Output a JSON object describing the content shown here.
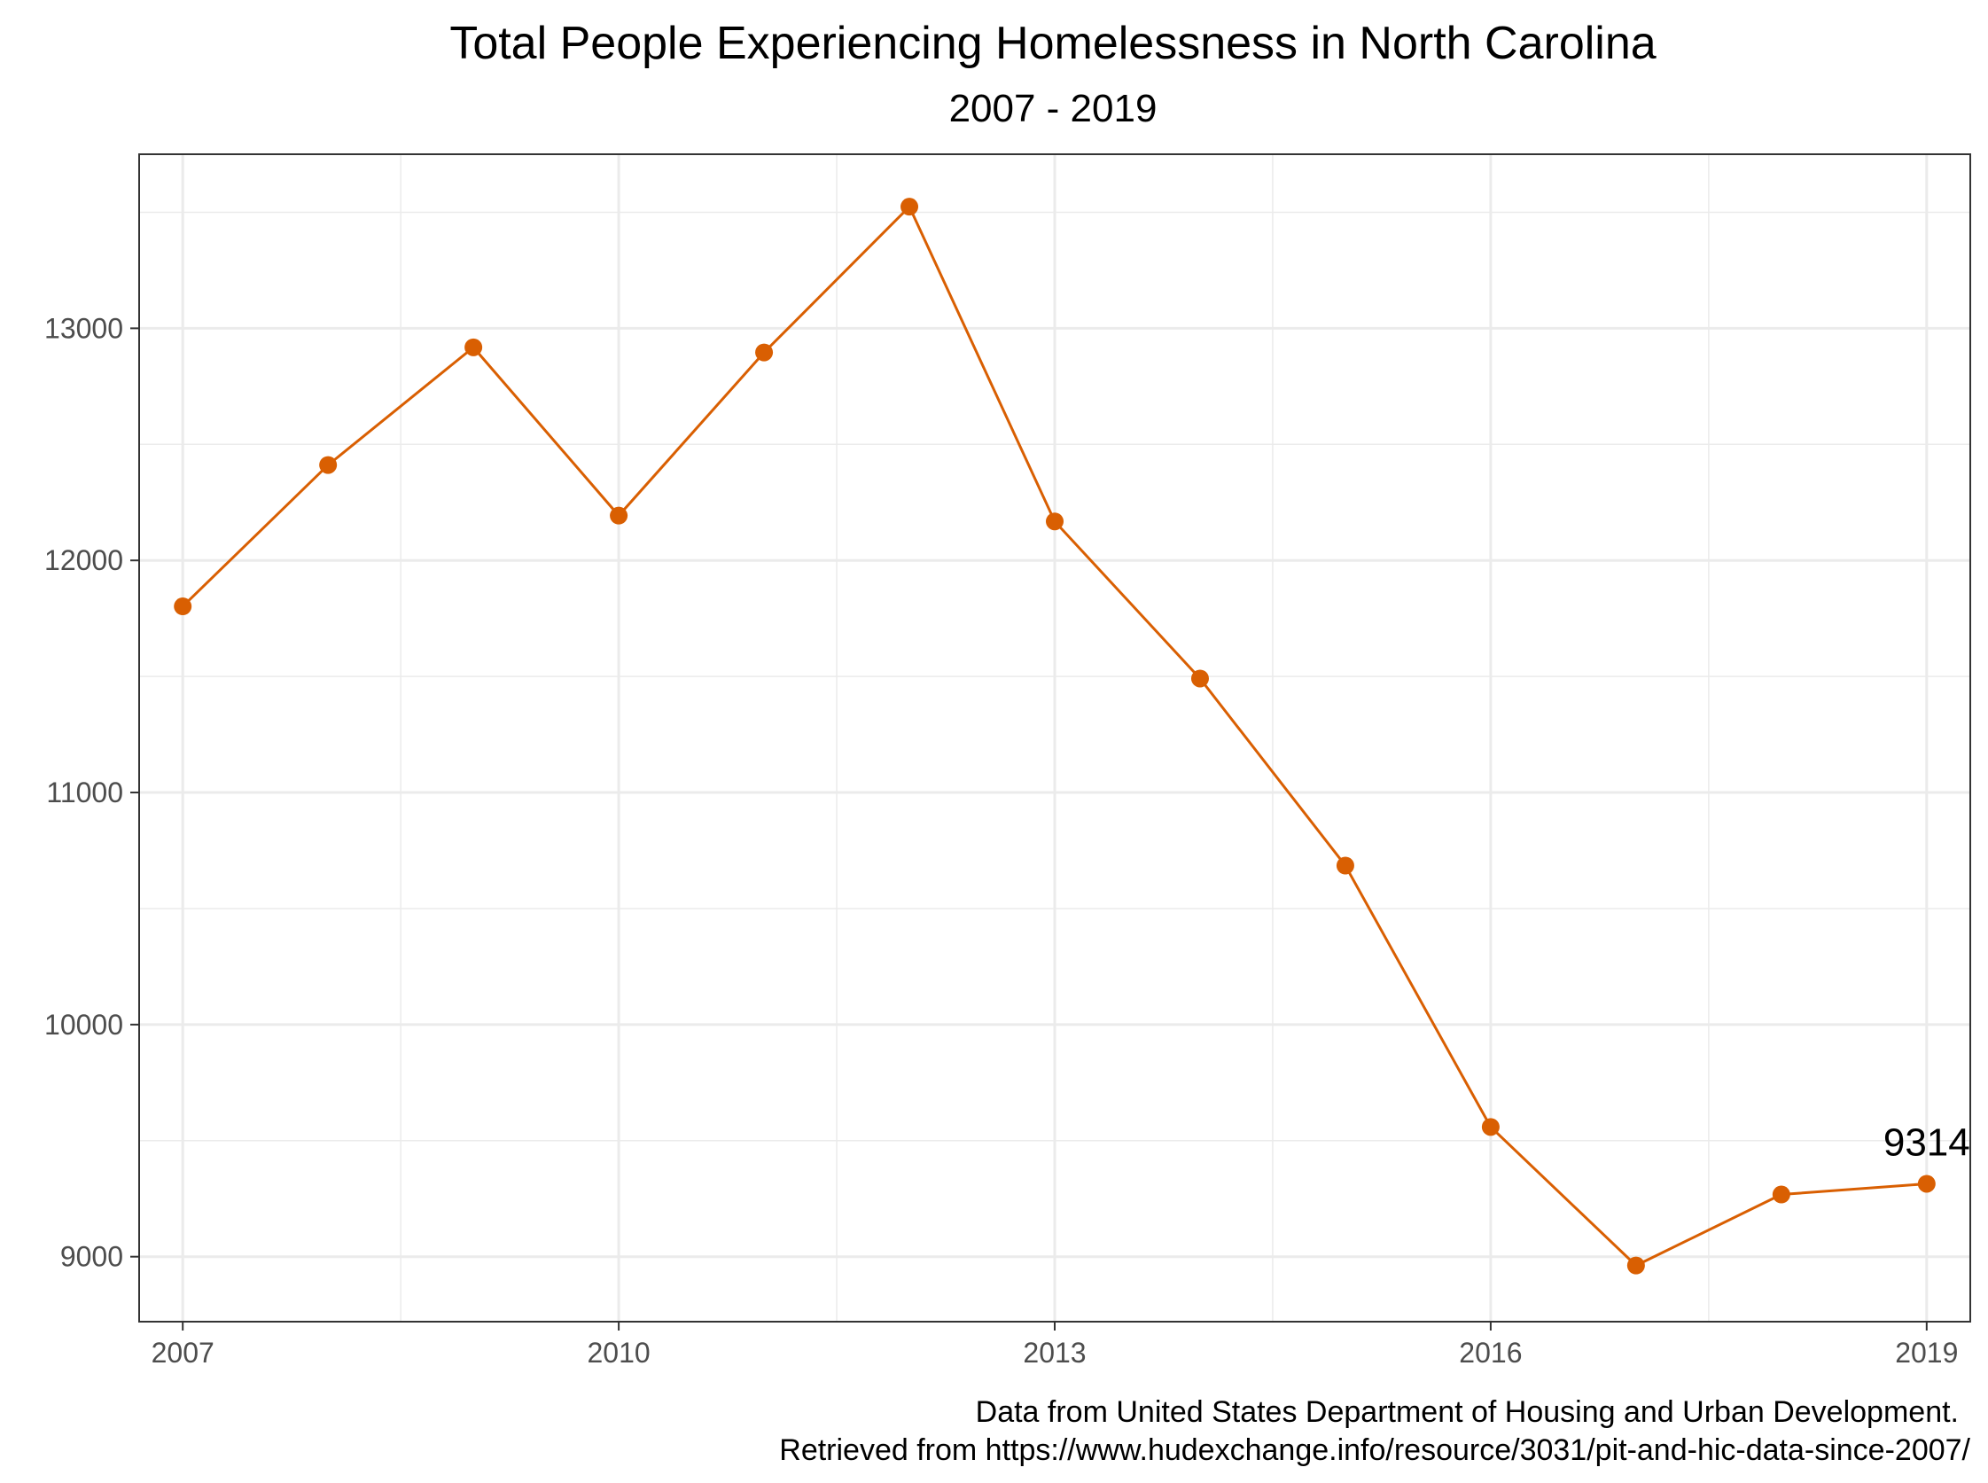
{
  "chart_data": {
    "type": "line",
    "title": "Total People Experiencing Homelessness in North Carolina",
    "subtitle": "2007 - 2019",
    "xlabel": "",
    "ylabel": "",
    "x": [
      2007,
      2008,
      2009,
      2010,
      2011,
      2012,
      2013,
      2014,
      2015,
      2016,
      2017,
      2018,
      2019
    ],
    "series": [
      {
        "values": [
          11802,
          12411,
          12918,
          12193,
          12896,
          13524,
          12168,
          11491,
          10685,
          9559,
          8962,
          9268,
          9314
        ],
        "color": "#d95f02"
      }
    ],
    "xlim": [
      2006.7,
      2019.3
    ],
    "ylim": [
      8720,
      13750
    ],
    "x_ticks": [
      2007,
      2010,
      2013,
      2016,
      2019
    ],
    "y_ticks": [
      9000,
      10000,
      11000,
      12000,
      13000
    ],
    "grid": true,
    "legend": "none",
    "annotations": [
      {
        "x": 2019,
        "text": "9314"
      }
    ],
    "caption": [
      "Data from United States Department of Housing and Urban Development.",
      "Retrieved from https://www.hudexchange.info/resource/3031/pit-and-hic-data-since-2007/"
    ],
    "colors": {
      "grid": "#ebebeb",
      "panel_border": "#333333",
      "axis_text": "#4d4d4d"
    }
  }
}
